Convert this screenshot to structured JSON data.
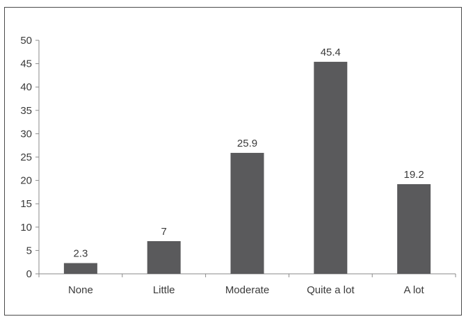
{
  "chart_data": {
    "type": "bar",
    "title": "",
    "xlabel": "",
    "ylabel": "",
    "categories": [
      "None",
      "Little",
      "Moderate",
      "Quite a lot",
      "A lot"
    ],
    "values": [
      2.3,
      7,
      25.9,
      45.4,
      19.2
    ],
    "data_labels": [
      "2.3",
      "7",
      "25.9",
      "45.4",
      "19.2"
    ],
    "ylim": [
      0,
      50
    ],
    "yticks": [
      0,
      5,
      10,
      15,
      20,
      25,
      30,
      35,
      40,
      45,
      50
    ],
    "grid": false,
    "legend": "none",
    "bar_color": "#5a5a5c"
  }
}
